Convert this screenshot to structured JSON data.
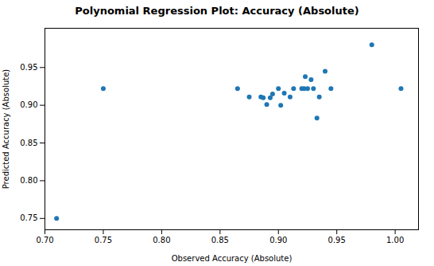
{
  "chart_data": {
    "type": "scatter",
    "title": "Polynomial Regression Plot: Accuracy (Absolute)",
    "xlabel": "Observed Accuracy (Absolute)",
    "ylabel": "Predicted Accuracy (Absolute)",
    "x": [
      0.71,
      0.75,
      0.865,
      0.875,
      0.885,
      0.887,
      0.89,
      0.893,
      0.895,
      0.9,
      0.902,
      0.905,
      0.91,
      0.913,
      0.92,
      0.922,
      0.923,
      0.925,
      0.928,
      0.93,
      0.933,
      0.935,
      0.94,
      0.945,
      0.98,
      1.005
    ],
    "values": [
      0.75,
      0.922,
      0.922,
      0.911,
      0.911,
      0.91,
      0.901,
      0.91,
      0.915,
      0.922,
      0.9,
      0.916,
      0.911,
      0.922,
      0.922,
      0.922,
      0.938,
      0.922,
      0.934,
      0.922,
      0.883,
      0.911,
      0.945,
      0.922,
      0.98,
      0.922
    ],
    "color": "#1f77b4",
    "xlim": [
      0.7,
      1.02
    ],
    "ylim": [
      0.735,
      1.002
    ],
    "xticks": [
      {
        "value": 0.7,
        "label": "0.70"
      },
      0.75,
      {
        "value": 0.8,
        "label": "0.80"
      },
      0.85,
      {
        "value": 0.9,
        "label": "0.90"
      },
      0.95,
      {
        "value": 1.0,
        "label": "1.00"
      }
    ],
    "yticks": [
      0.75,
      {
        "value": 0.8,
        "label": "0.80"
      },
      0.85,
      {
        "value": 0.9,
        "label": "0.90"
      },
      0.95
    ],
    "grid": false
  }
}
